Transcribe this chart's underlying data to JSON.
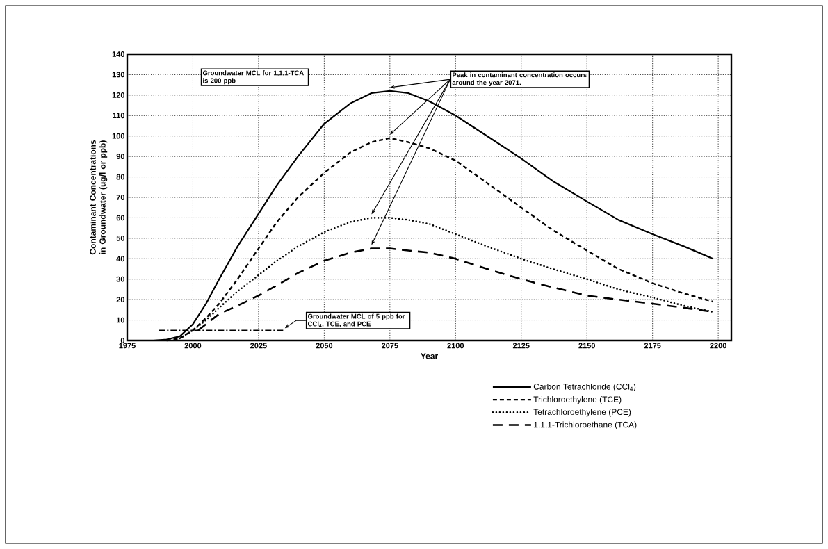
{
  "chart_data": {
    "type": "line",
    "xlabel": "Year",
    "ylabel": "Contaminant Concentrations in Groundwater (ug/l or ppb)",
    "xlim": [
      1975,
      2205
    ],
    "ylim": [
      0,
      140
    ],
    "xticks": [
      1975,
      2000,
      2025,
      2050,
      2075,
      2100,
      2125,
      2150,
      2175,
      2200
    ],
    "yticks": [
      0,
      10,
      20,
      30,
      40,
      50,
      60,
      70,
      80,
      90,
      100,
      110,
      120,
      130,
      140
    ],
    "grid": true,
    "legend": "bottom right",
    "annotations": [
      "Groundwater MCL for 1,1,1-TCA is 200 ppb",
      "Peak in contaminant concentration occurs around the year 2071.",
      "Groundwater MCL of 5 ppb for CCl$_{4}$, TCE, and PCE"
    ],
    "series": [
      {
        "name": "Carbon Tetrachloride (CCl$_{4}$)",
        "color": "#000000",
        "line_style": "solid",
        "x": [
          1985,
          1990,
          1995,
          2000,
          2005,
          2010,
          2017,
          2025,
          2032,
          2040,
          2050,
          2060,
          2068,
          2075,
          2082,
          2090,
          2100,
          2112,
          2125,
          2137,
          2150,
          2162,
          2175,
          2187,
          2198
        ],
        "values": [
          0,
          0.5,
          2,
          8,
          18,
          30,
          46,
          62,
          76,
          90,
          106,
          116,
          121,
          122,
          121,
          117,
          110,
          100,
          89,
          78,
          68,
          59,
          52,
          46,
          40
        ]
      },
      {
        "name": "Trichloroethylene (TCE)",
        "color": "#000000",
        "line_style": "dashed",
        "x": [
          1990,
          1995,
          2000,
          2005,
          2010,
          2017,
          2025,
          2032,
          2040,
          2050,
          2060,
          2068,
          2075,
          2082,
          2090,
          2100,
          2112,
          2125,
          2137,
          2150,
          2162,
          2175,
          2187,
          2198
        ],
        "values": [
          0,
          1,
          5,
          11,
          18,
          30,
          45,
          58,
          70,
          82,
          92,
          97,
          99,
          97,
          94,
          88,
          77,
          65,
          54,
          44,
          35,
          28,
          23,
          19
        ]
      },
      {
        "name": "Tetrachloroethylene (PCE)",
        "color": "#000000",
        "line_style": "dotted",
        "x": [
          1995,
          2000,
          2005,
          2010,
          2017,
          2025,
          2032,
          2040,
          2050,
          2060,
          2068,
          2075,
          2082,
          2090,
          2100,
          2112,
          2125,
          2137,
          2150,
          2162,
          2175,
          2187,
          2198
        ],
        "values": [
          1,
          5,
          10,
          16,
          24,
          32,
          39,
          46,
          53,
          58,
          60,
          60,
          59,
          57,
          52,
          46,
          40,
          35,
          30,
          25,
          21,
          17,
          14
        ]
      },
      {
        "name": "1,1,1-Trichloroethane (TCA)",
        "color": "#000000",
        "line_style": "longdashed",
        "x": [
          2002,
          2006,
          2010,
          2017,
          2025,
          2032,
          2040,
          2050,
          2060,
          2068,
          2075,
          2082,
          2090,
          2100,
          2112,
          2125,
          2137,
          2150,
          2162,
          2175,
          2187,
          2198
        ],
        "values": [
          5,
          9,
          13,
          17,
          22,
          27,
          33,
          39,
          43,
          45,
          45,
          44,
          43,
          40,
          35,
          30,
          26,
          22,
          20,
          18,
          16,
          14
        ]
      },
      {
        "color": "#000000",
        "line_style": "dashdotted",
        "x": [
          1987,
          2035
        ],
        "values": [
          5,
          5
        ]
      }
    ]
  }
}
